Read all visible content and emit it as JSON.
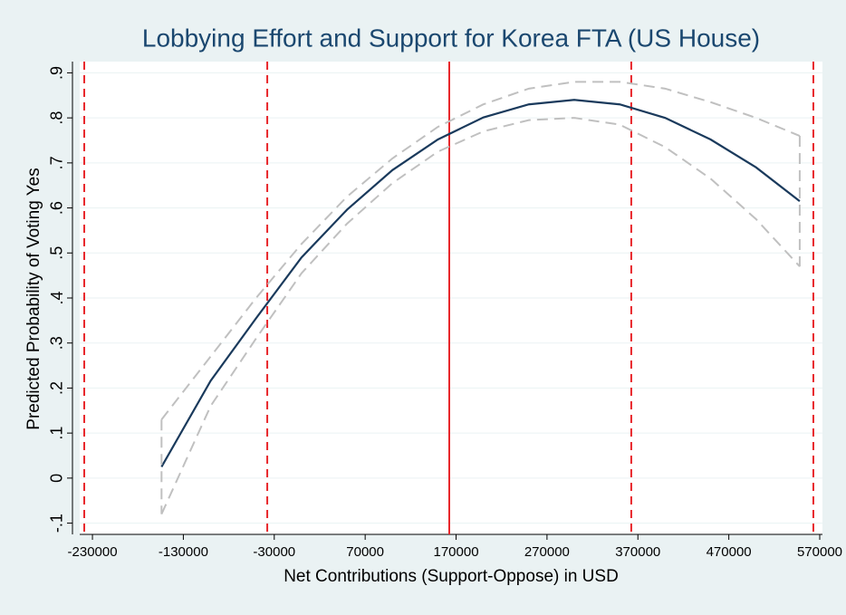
{
  "chart_data": {
    "type": "line",
    "title": "Lobbying Effort and Support for Korea FTA (US House)",
    "x_label": "Net Contributions (Support-Oppose) in USD",
    "y_label": "Predicted Probability of Voting Yes",
    "x": [
      -154000,
      -100000,
      -50000,
      0,
      50000,
      100000,
      150000,
      200000,
      250000,
      300000,
      350000,
      400000,
      450000,
      500000,
      548000
    ],
    "series": [
      {
        "color": "#1a3a5c",
        "values": [
          0.025,
          0.216,
          0.355,
          0.49,
          0.596,
          0.684,
          0.752,
          0.801,
          0.83,
          0.84,
          0.83,
          0.8,
          0.752,
          0.69,
          0.615
        ]
      },
      {
        "color": "#c0c0c0",
        "dashed": true,
        "values": [
          0.13,
          0.27,
          0.4,
          0.52,
          0.625,
          0.71,
          0.78,
          0.83,
          0.865,
          0.88,
          0.88,
          0.865,
          0.835,
          0.8,
          0.76
        ]
      },
      {
        "color": "#c0c0c0",
        "dashed": true,
        "values": [
          -0.08,
          0.16,
          0.31,
          0.455,
          0.565,
          0.655,
          0.725,
          0.77,
          0.795,
          0.8,
          0.785,
          0.735,
          0.665,
          0.575,
          0.47
        ]
      }
    ],
    "reference_lines": [
      {
        "x": -239000,
        "color": "#e8262b",
        "dashed": true
      },
      {
        "x": -37700,
        "color": "#e8262b",
        "dashed": true
      },
      {
        "x": 162500,
        "color": "#e8262b",
        "dashed": false
      },
      {
        "x": 362700,
        "color": "#e8262b",
        "dashed": true
      },
      {
        "x": 563000,
        "color": "#e8262b",
        "dashed": true
      }
    ],
    "xlim": [
      -244000,
      573000
    ],
    "ylim": [
      -0.125,
      0.925
    ],
    "xticks": [
      -230000,
      -130000,
      -30000,
      70000,
      170000,
      270000,
      370000,
      470000,
      570000
    ],
    "yticks": [
      {
        "value": -0.1,
        "label": "-.1"
      },
      0,
      {
        "value": 0.1,
        "label": ".1"
      },
      {
        "value": 0.2,
        "label": ".2"
      },
      {
        "value": 0.3,
        "label": ".3"
      },
      {
        "value": 0.4,
        "label": ".4"
      },
      {
        "value": 0.5,
        "label": ".5"
      },
      {
        "value": 0.6,
        "label": ".6"
      },
      {
        "value": 0.7,
        "label": ".7"
      },
      {
        "value": 0.8,
        "label": ".8"
      },
      {
        "value": 0.9,
        "label": ".9"
      }
    ],
    "grid": true
  }
}
